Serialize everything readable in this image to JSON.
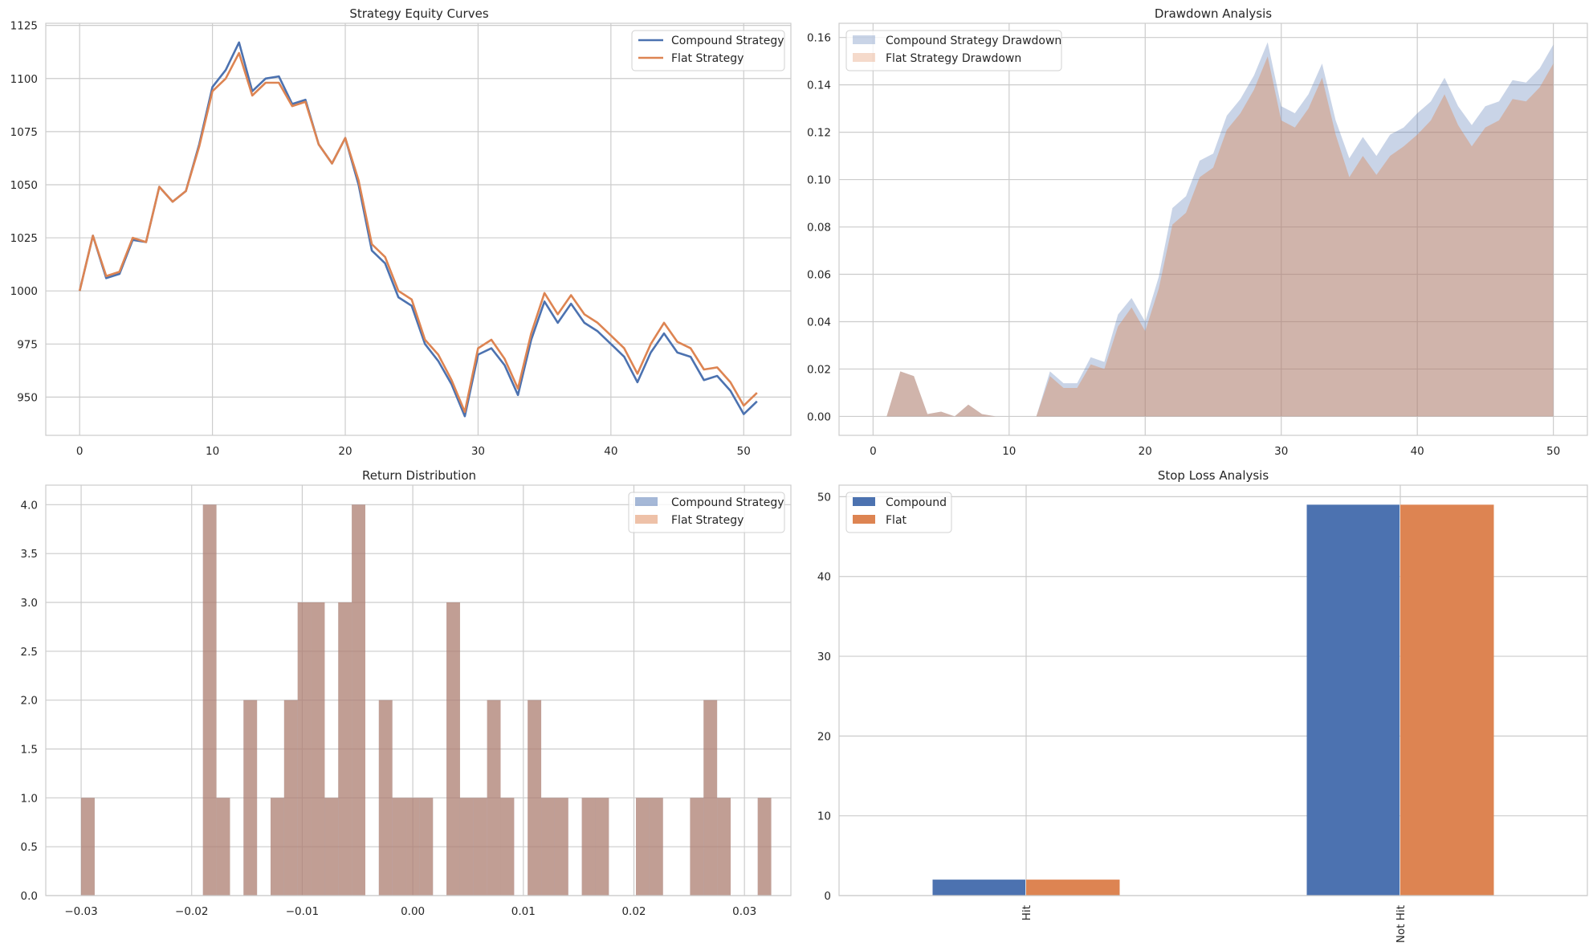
{
  "colors": {
    "blue": "#4c72b0",
    "orange": "#dd8452",
    "grid": "#cccccc",
    "axis_bg": "#ffffff"
  },
  "chart_data": [
    {
      "type": "line",
      "title": "Strategy Equity Curves",
      "xlim": [
        -2.55,
        53.55
      ],
      "ylim": [
        932,
        1126
      ],
      "xticks": [
        0,
        10,
        20,
        30,
        40,
        50
      ],
      "yticks": [
        950,
        975,
        1000,
        1025,
        1050,
        1075,
        1100,
        1125
      ],
      "legend_position": "top-right",
      "series": [
        {
          "name": "Compound Strategy",
          "color": "#4c72b0",
          "values": [
            1000,
            1026,
            1006,
            1008,
            1024,
            1023,
            1049,
            1042,
            1047,
            1069,
            1096,
            1104,
            1117,
            1094,
            1100,
            1101,
            1088,
            1090,
            1069,
            1060,
            1072,
            1050,
            1019,
            1013,
            997,
            993,
            975,
            967,
            956,
            941,
            970,
            973,
            965,
            951,
            977,
            995,
            985,
            994,
            985,
            981,
            975,
            969,
            957,
            971,
            980,
            971,
            969,
            958,
            960,
            953,
            942,
            948
          ]
        },
        {
          "name": "Flat Strategy",
          "color": "#dd8452",
          "values": [
            1000,
            1026,
            1007,
            1009,
            1025,
            1023,
            1049,
            1042,
            1047,
            1068,
            1094,
            1100,
            1112,
            1092,
            1098,
            1098,
            1087,
            1089,
            1069,
            1060,
            1072,
            1052,
            1022,
            1016,
            1000,
            996,
            977,
            970,
            958,
            943,
            973,
            977,
            968,
            954,
            980,
            999,
            989,
            998,
            989,
            985,
            979,
            973,
            961,
            975,
            985,
            976,
            973,
            963,
            964,
            957,
            946,
            952
          ]
        }
      ]
    },
    {
      "type": "area",
      "title": "Drawdown Analysis",
      "xlim": [
        -2.5,
        52.5
      ],
      "ylim": [
        -0.008,
        0.166
      ],
      "xticks": [
        0,
        10,
        20,
        30,
        40,
        50
      ],
      "yticks": [
        0.0,
        0.02,
        0.04,
        0.06,
        0.08,
        0.1,
        0.12,
        0.14,
        0.16
      ],
      "ytick_labels": [
        "0.00",
        "0.02",
        "0.04",
        "0.06",
        "0.08",
        "0.10",
        "0.12",
        "0.14",
        "0.16"
      ],
      "legend_position": "top-left",
      "series": [
        {
          "name": "Compound Strategy Drawdown",
          "color": "#4c72b0",
          "values": [
            0,
            0,
            0.019,
            0.017,
            0.001,
            0.002,
            0,
            0.005,
            0.001,
            0,
            0,
            0,
            0,
            0.019,
            0.014,
            0.014,
            0.025,
            0.023,
            0.043,
            0.05,
            0.04,
            0.059,
            0.088,
            0.093,
            0.108,
            0.111,
            0.127,
            0.134,
            0.144,
            0.158,
            0.131,
            0.128,
            0.136,
            0.149,
            0.125,
            0.109,
            0.118,
            0.11,
            0.119,
            0.122,
            0.128,
            0.133,
            0.143,
            0.131,
            0.123,
            0.131,
            0.133,
            0.142,
            0.141,
            0.147,
            0.157
          ]
        },
        {
          "name": "Flat Strategy Drawdown",
          "color": "#dd8452",
          "values": [
            0,
            0,
            0.019,
            0.017,
            0.001,
            0.002,
            0,
            0.005,
            0.001,
            0,
            0,
            0,
            0,
            0.017,
            0.012,
            0.012,
            0.022,
            0.02,
            0.038,
            0.046,
            0.036,
            0.054,
            0.081,
            0.086,
            0.101,
            0.105,
            0.121,
            0.128,
            0.138,
            0.152,
            0.125,
            0.122,
            0.13,
            0.143,
            0.119,
            0.101,
            0.11,
            0.102,
            0.11,
            0.114,
            0.119,
            0.125,
            0.136,
            0.123,
            0.114,
            0.122,
            0.125,
            0.134,
            0.133,
            0.139,
            0.149
          ]
        }
      ]
    },
    {
      "type": "bar",
      "subtype": "histogram",
      "title": "Return Distribution",
      "xlim": [
        -0.0332,
        0.0342
      ],
      "ylim": [
        0,
        4.2
      ],
      "xticks": [
        -0.03,
        -0.02,
        -0.01,
        0.0,
        0.01,
        0.02,
        0.03
      ],
      "xtick_labels": [
        "−0.03",
        "−0.02",
        "−0.01",
        "0.00",
        "0.01",
        "0.02",
        "0.03"
      ],
      "yticks": [
        0.0,
        0.5,
        1.0,
        1.5,
        2.0,
        2.5,
        3.0,
        3.5,
        4.0
      ],
      "ytick_labels": [
        "0.0",
        "0.5",
        "1.0",
        "1.5",
        "2.0",
        "2.5",
        "3.0",
        "3.5",
        "4.0"
      ],
      "legend_position": "top-right",
      "bin_start": -0.03,
      "bin_width": 0.001224,
      "counts": [
        1,
        0,
        0,
        0,
        0,
        0,
        0,
        0,
        0,
        4,
        1,
        0,
        2,
        0,
        1,
        2,
        3,
        3,
        1,
        3,
        4,
        0,
        2,
        1,
        1,
        1,
        0,
        3,
        1,
        1,
        2,
        1,
        0,
        2,
        1,
        1,
        0,
        1,
        1,
        0,
        0,
        1,
        1,
        0,
        0,
        1,
        2,
        1,
        0,
        0,
        1
      ],
      "series": [
        {
          "name": "Compound Strategy",
          "color": "#4c72b0"
        },
        {
          "name": "Flat Strategy",
          "color": "#dd8452"
        }
      ]
    },
    {
      "type": "bar",
      "title": "Stop Loss Analysis",
      "categories": [
        "Hit",
        "Not Hit"
      ],
      "ylim": [
        0,
        51.45
      ],
      "yticks": [
        0,
        10,
        20,
        30,
        40,
        50
      ],
      "legend_position": "top-left",
      "series": [
        {
          "name": "Compound",
          "color": "#4c72b0",
          "values": [
            2,
            49
          ]
        },
        {
          "name": "Flat",
          "color": "#dd8452",
          "values": [
            2,
            49
          ]
        }
      ]
    }
  ]
}
